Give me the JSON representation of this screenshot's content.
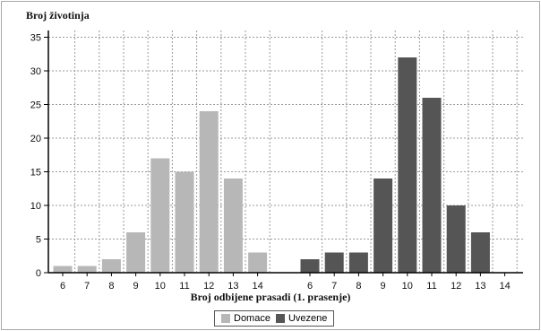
{
  "chart_data": {
    "type": "bar",
    "ylabel": "Broj životinja",
    "xlabel": "Broj odbijene prasadi (1. prasenje)",
    "ylim": [
      0,
      36
    ],
    "yticks": [
      0,
      5,
      10,
      15,
      20,
      25,
      30,
      35
    ],
    "grid": true,
    "legend_position": "bottom",
    "groups": [
      {
        "name": "Domace",
        "color": "#b7b7b7",
        "categories": [
          "6",
          "7",
          "8",
          "9",
          "10",
          "11",
          "12",
          "13",
          "14"
        ],
        "values": [
          1,
          1,
          2,
          6,
          17,
          15,
          24,
          14,
          3
        ]
      },
      {
        "name": "Uvezene",
        "color": "#555555",
        "categories": [
          "6",
          "7",
          "8",
          "9",
          "10",
          "11",
          "12",
          "13",
          "14"
        ],
        "values": [
          2,
          3,
          3,
          14,
          32,
          26,
          10,
          6,
          0
        ]
      }
    ]
  }
}
